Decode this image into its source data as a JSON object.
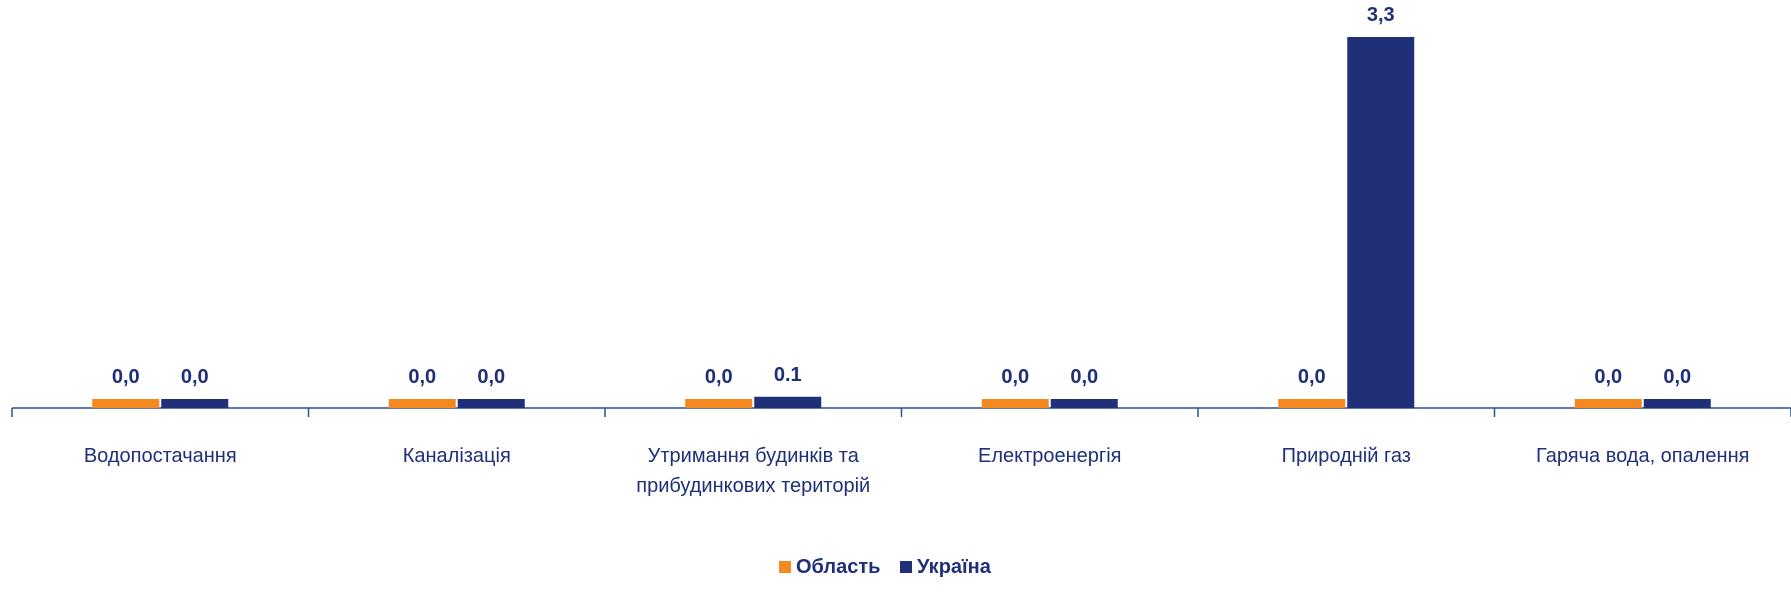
{
  "chart_data": {
    "type": "bar",
    "title": "",
    "xlabel": "",
    "ylabel": "",
    "categories": [
      [
        "Водопостачання"
      ],
      [
        "Каналізація"
      ],
      [
        "Утримання будинків та",
        "прибудинкових територій"
      ],
      [
        "Електроенергія"
      ],
      [
        "Природній газ"
      ],
      [
        "Гаряча вода, опалення"
      ]
    ],
    "series": [
      {
        "name": "Область",
        "color": "#f5891f",
        "values": [
          0.0,
          0.0,
          0.0,
          0.0,
          0.0,
          0.0
        ],
        "labels": [
          "0,0",
          "0,0",
          "0,0",
          "0,0",
          "0,0",
          "0,0"
        ]
      },
      {
        "name": "Україна",
        "color": "#1f3079",
        "values": [
          0.0,
          0.0,
          0.1,
          0.0,
          3.3,
          0.0
        ],
        "labels": [
          "0,0",
          "0,0",
          "0.1",
          "0,0",
          "3,3",
          "0,0"
        ]
      }
    ],
    "ylim": [
      0,
      3.3
    ],
    "grid": false,
    "legend_position": "bottom-center",
    "text_color": "#1f3079",
    "axis_color": "#2f4f8f"
  }
}
